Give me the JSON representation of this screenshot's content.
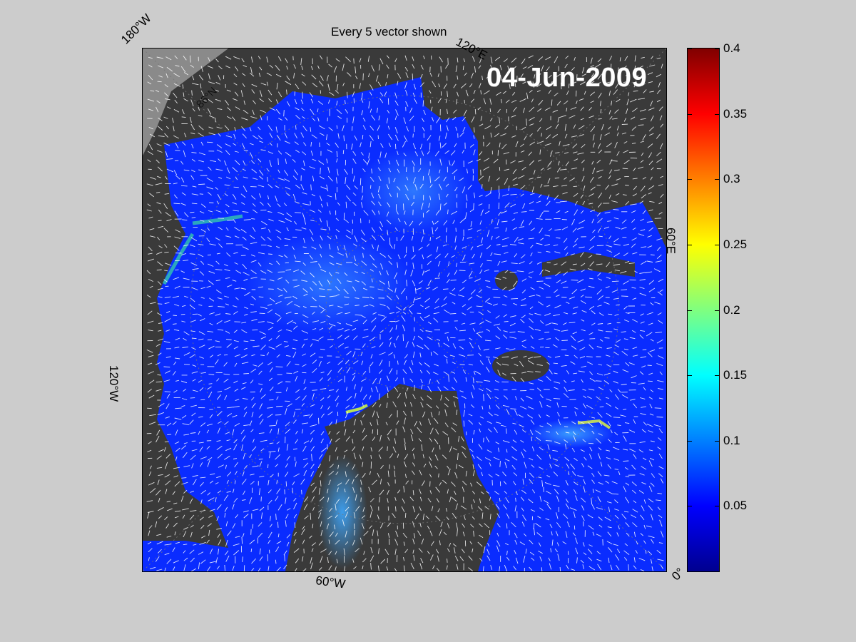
{
  "title": "Every 5 vector shown",
  "date": "04-Jun-2009",
  "lon_labels": {
    "w180": "180°W",
    "e120": "120°E",
    "e60": "60°E",
    "w120": "120°W",
    "w60": "60°W",
    "zero": "0°",
    "lat86": "86°N"
  },
  "colorbar": {
    "colormap": "jet",
    "range": [
      0,
      0.4
    ],
    "ticks": [
      "0.4",
      "0.35",
      "0.3",
      "0.25",
      "0.2",
      "0.15",
      "0.1",
      "0.05"
    ]
  },
  "colors": {
    "background": "#cccccc",
    "land": "#3a3a3a",
    "ice_flow_base": "#0a2cff",
    "vector": "#ffffff"
  }
}
